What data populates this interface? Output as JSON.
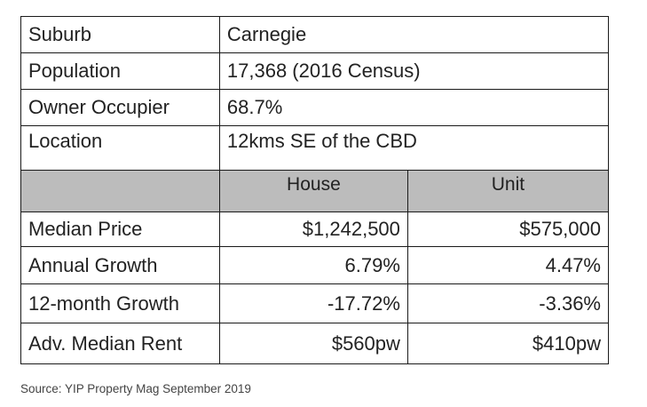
{
  "info_rows": [
    {
      "label": "Suburb",
      "value": "Carnegie"
    },
    {
      "label": "Population",
      "value": "17,368 (2016 Census)"
    },
    {
      "label": "Owner Occupier",
      "value": "68.7%"
    },
    {
      "label": "Location",
      "value": "12kms SE of the CBD"
    }
  ],
  "header": {
    "col1": "",
    "col2": "House",
    "col3": "Unit"
  },
  "data_rows": [
    {
      "label": "Median Price",
      "house": "$1,242,500",
      "unit": "$575,000"
    },
    {
      "label": "Annual Growth",
      "house": "6.79%",
      "unit": "4.47%"
    },
    {
      "label": "12-month Growth",
      "house": "-17.72%",
      "unit": "-3.36%"
    },
    {
      "label": "Adv. Median Rent",
      "house": "$560pw",
      "unit": "$410pw"
    }
  ],
  "source": "Source: YIP Property Mag September 2019",
  "colors": {
    "header_bg": "#bcbcbc",
    "border": "#1a1a1a"
  }
}
